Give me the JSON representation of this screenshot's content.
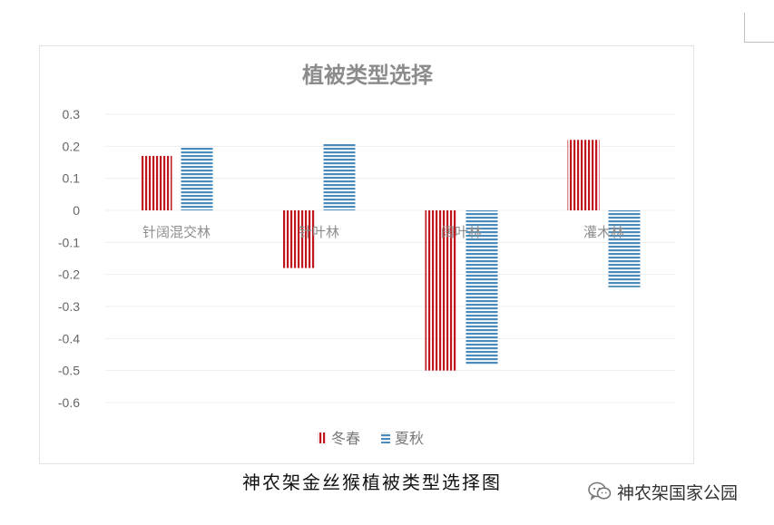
{
  "chart_data": {
    "type": "bar",
    "title": "植被类型选择",
    "categories": [
      "针阔混交林",
      "针叶林",
      "阔叶林",
      "灌木林"
    ],
    "series": [
      {
        "name": "冬春",
        "values": [
          0.17,
          -0.18,
          -0.5,
          0.22
        ],
        "color": "#c0161d",
        "pattern": "vertical-stripes"
      },
      {
        "name": "夏秋",
        "values": [
          0.2,
          0.21,
          -0.48,
          -0.24
        ],
        "color": "#4a8bbd",
        "pattern": "horizontal-stripes"
      }
    ],
    "ylim": [
      -0.6,
      0.3
    ],
    "yticks": [
      0.3,
      0.2,
      0.1,
      0,
      -0.1,
      -0.2,
      -0.3,
      -0.4,
      -0.5,
      -0.6
    ],
    "ytick_labels": [
      "0.3",
      "0.2",
      "0.1",
      "0",
      "-0.1",
      "-0.2",
      "-0.3",
      "-0.4",
      "-0.5",
      "-0.6"
    ],
    "grid": true,
    "legend_position": "bottom"
  },
  "caption": "神农架金丝猴植被类型选择图",
  "watermark": {
    "text": "神农架国家公园",
    "icon": "wechat-icon"
  }
}
